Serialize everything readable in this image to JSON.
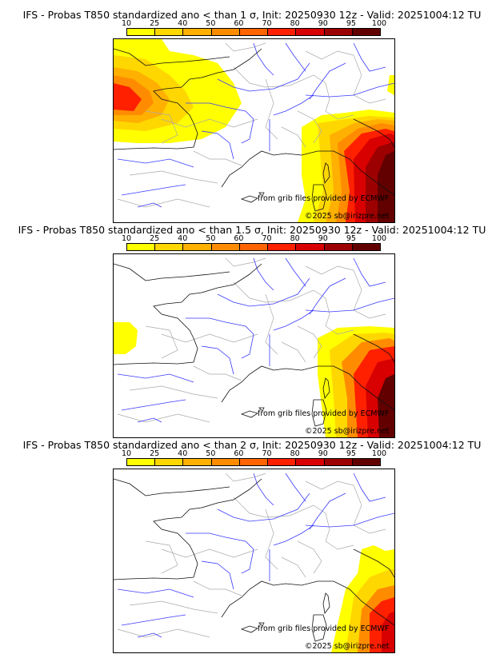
{
  "colorbar": {
    "ticks": [
      "10",
      "25",
      "40",
      "50",
      "60",
      "70",
      "80",
      "90",
      "95",
      "100"
    ],
    "colors": [
      "#ffff00",
      "#ffd700",
      "#ffb000",
      "#ff8c00",
      "#ff6400",
      "#ff2000",
      "#d80000",
      "#9c0000",
      "#620000"
    ]
  },
  "panels": [
    {
      "title": "IFS - Probas T850  standardized ano < than 1 σ, Init: 20250930 12z - Valid: 20251004:12 TU"
    },
    {
      "title": "IFS - Probas T850  standardized ano < than 1.5 σ, Init: 20250930 12z - Valid: 20251004:12 TU"
    },
    {
      "title": "IFS - Probas T850  standardized ano < than 2 σ, Init: 20250930 12z - Valid: 20251004:12 TU"
    }
  ],
  "credits": {
    "source": "from grib files provided by ECMWF",
    "copyright": "©2025 sb@irizpre.net"
  }
}
